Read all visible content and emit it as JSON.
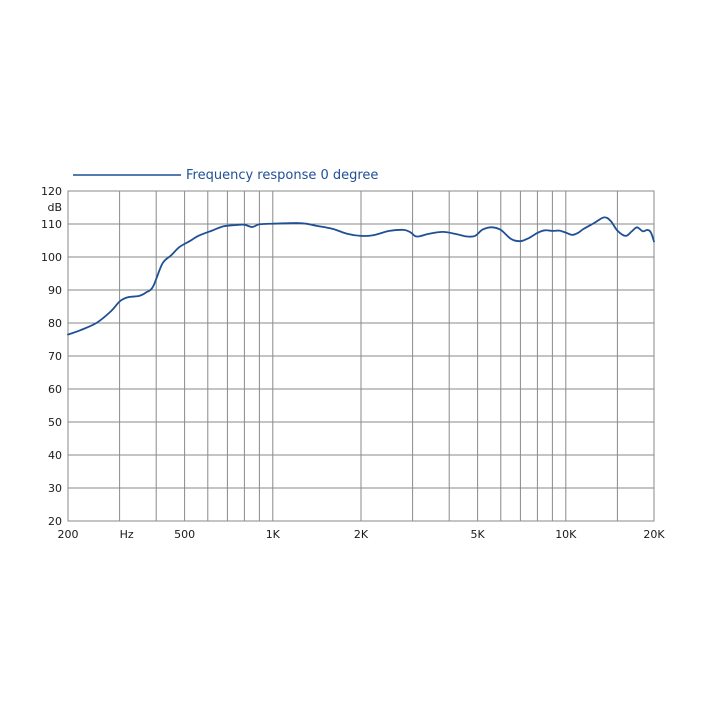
{
  "chart_data": {
    "type": "line",
    "title": "",
    "xlabel": "Hz",
    "ylabel": "dB",
    "x_scale": "log",
    "xlim": [
      200,
      20000
    ],
    "ylim": [
      20,
      120
    ],
    "grid": true,
    "legend_position": "top-left",
    "colors": {
      "series": "#1f4f95",
      "grid": "#8a8a8a",
      "text": "#1a1a1a",
      "legend_text": "#1f4f95"
    },
    "x_ticks": [
      {
        "value": 200,
        "label": "200"
      },
      {
        "value": 500,
        "label": "500"
      },
      {
        "value": 1000,
        "label": "1K"
      },
      {
        "value": 2000,
        "label": "2K"
      },
      {
        "value": 5000,
        "label": "5K"
      },
      {
        "value": 10000,
        "label": "10K"
      },
      {
        "value": 20000,
        "label": "20K"
      }
    ],
    "x_unit_label": {
      "value": 300,
      "label": "Hz"
    },
    "x_gridlines": [
      200,
      300,
      400,
      500,
      600,
      700,
      800,
      900,
      1000,
      2000,
      3000,
      4000,
      5000,
      6000,
      7000,
      8000,
      9000,
      10000,
      15000,
      20000
    ],
    "y_ticks": [
      20,
      30,
      40,
      50,
      60,
      70,
      80,
      90,
      100,
      110,
      120
    ],
    "series": [
      {
        "name": "Frequency response 0 degree",
        "points": [
          [
            200,
            76.5
          ],
          [
            220,
            77.8
          ],
          [
            250,
            80.0
          ],
          [
            280,
            83.5
          ],
          [
            300,
            86.5
          ],
          [
            320,
            87.8
          ],
          [
            350,
            88.2
          ],
          [
            370,
            89.3
          ],
          [
            390,
            91.0
          ],
          [
            420,
            98.0
          ],
          [
            450,
            100.5
          ],
          [
            480,
            103.0
          ],
          [
            520,
            104.8
          ],
          [
            560,
            106.5
          ],
          [
            620,
            108.0
          ],
          [
            680,
            109.3
          ],
          [
            750,
            109.7
          ],
          [
            800,
            109.8
          ],
          [
            850,
            109.1
          ],
          [
            900,
            109.9
          ],
          [
            1000,
            110.1
          ],
          [
            1100,
            110.2
          ],
          [
            1200,
            110.3
          ],
          [
            1300,
            110.1
          ],
          [
            1400,
            109.5
          ],
          [
            1600,
            108.5
          ],
          [
            1800,
            107.0
          ],
          [
            2000,
            106.4
          ],
          [
            2200,
            106.6
          ],
          [
            2500,
            107.9
          ],
          [
            2800,
            108.2
          ],
          [
            2950,
            107.5
          ],
          [
            3100,
            106.2
          ],
          [
            3400,
            107.0
          ],
          [
            3800,
            107.6
          ],
          [
            4200,
            107.0
          ],
          [
            4600,
            106.2
          ],
          [
            4900,
            106.4
          ],
          [
            5200,
            108.3
          ],
          [
            5600,
            109.0
          ],
          [
            6000,
            108.2
          ],
          [
            6500,
            105.5
          ],
          [
            7000,
            104.8
          ],
          [
            7500,
            105.8
          ],
          [
            8000,
            107.3
          ],
          [
            8500,
            108.1
          ],
          [
            9000,
            107.9
          ],
          [
            9500,
            108.0
          ],
          [
            10000,
            107.4
          ],
          [
            10500,
            106.7
          ],
          [
            11000,
            107.3
          ],
          [
            11500,
            108.5
          ],
          [
            12500,
            110.3
          ],
          [
            13500,
            112.0
          ],
          [
            14200,
            111.0
          ],
          [
            15000,
            108.0
          ],
          [
            16000,
            106.4
          ],
          [
            16800,
            107.8
          ],
          [
            17500,
            109.0
          ],
          [
            18300,
            107.8
          ],
          [
            19000,
            108.2
          ],
          [
            19500,
            107.5
          ],
          [
            20000,
            104.7
          ]
        ]
      }
    ]
  }
}
